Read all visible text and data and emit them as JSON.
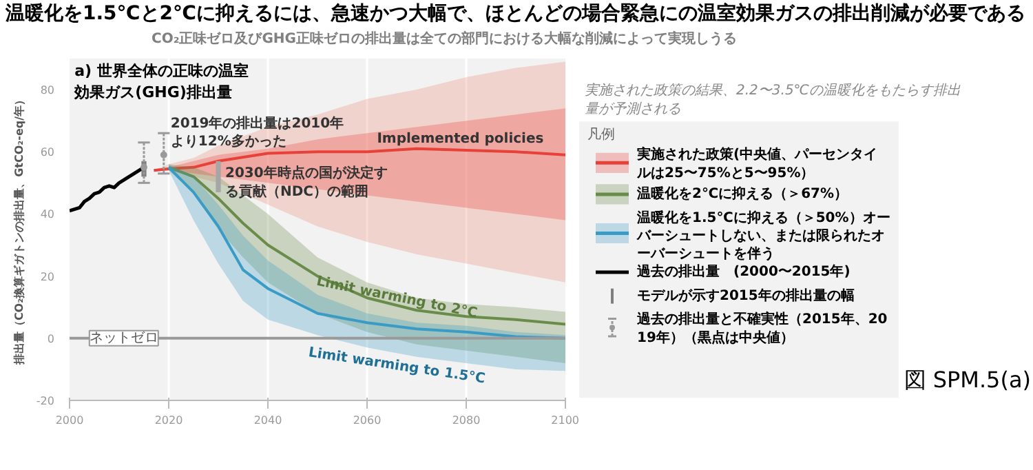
{
  "chart_data": {
    "type": "line",
    "title": "温暖化を1.5℃と2℃に抑えるには、急速かつ大幅で、ほとんどの場合緊急にの温室効果ガスの排出削減が必要である",
    "subtitle": "CO₂正味ゼロ及びGHG正味ゼロの排出量は全ての部門における大幅な削減によって実現しうる",
    "ylabel": "排出量（CO₂換算ギガトンの排出量、GtCO₂-eq/年）",
    "legend_title": "凡例",
    "xlim": [
      2000,
      2100
    ],
    "xticks": [
      2000,
      2020,
      2040,
      2060,
      2080,
      2100
    ],
    "ylim": [
      -20,
      90
    ],
    "yticks": [
      -20,
      0,
      20,
      40,
      60,
      80
    ],
    "grid": "x",
    "legend": "right",
    "ref_lines": [
      {
        "axis": "y",
        "value": 0,
        "label": "ネットゼロ",
        "color": "#9a9a9a"
      }
    ],
    "annotations": [
      "a) 世界全体の正味の温室効果ガス(GHG)排出量",
      "実施された政策の結果、2.2〜3.5℃の温暖化をもたらす排出量が予測される",
      "図 SPM.5(a)",
      "Implemented policies",
      "Limit warming to 2°C",
      "Limit warming to 1.5°C",
      {
        "text": "2019年の排出量は2010年より12%多かった",
        "x": 2019,
        "y": 66
      },
      {
        "text": "2030年時点の国が決定する貢献（NDC）の範囲",
        "x": 2030,
        "y": 50
      }
    ],
    "series": [
      {
        "color": "#f08c78",
        "x": [
          2017,
          2020,
          2025,
          2030,
          2040,
          2050,
          2060,
          2070,
          2080,
          2090,
          2100
        ],
        "values": [
          null,
          null,
          null,
          null,
          null,
          null,
          null,
          null,
          null,
          null,
          null
        ],
        "lower": [
          54,
          54,
          52,
          50,
          43,
          36,
          31,
          27,
          24,
          21,
          18
        ],
        "upper": [
          54,
          56,
          58,
          62,
          68,
          72,
          77,
          80,
          84,
          87,
          89
        ]
      },
      {
        "name": "実施された政策(中央値、パーセンタイルは25〜75%と5〜95%）",
        "color": "#e8413a",
        "x": [
          2017,
          2020,
          2025,
          2030,
          2040,
          2050,
          2060,
          2070,
          2080,
          2090,
          2100
        ],
        "values": [
          54,
          54.5,
          55,
          57,
          59.5,
          60,
          60,
          61,
          60.5,
          60,
          59
        ],
        "lower": [
          54,
          54,
          53,
          52,
          50,
          48,
          46,
          44,
          42,
          40,
          38
        ],
        "upper": [
          54,
          55,
          57,
          59,
          61,
          64,
          66,
          68,
          70,
          72,
          74
        ]
      },
      {
        "name": "温暖化を2℃に抑える（＞67%）",
        "color": "#6a8c4a",
        "x": [
          2020,
          2025,
          2030,
          2035,
          2040,
          2050,
          2060,
          2070,
          2080,
          2090,
          2100
        ],
        "values": [
          55,
          52,
          45,
          37,
          30,
          20,
          13,
          9,
          7,
          6,
          4.5
        ],
        "lower": [
          54,
          47,
          35,
          26,
          18,
          8,
          2,
          -2,
          -4,
          -6,
          -8
        ],
        "upper": [
          56,
          55,
          52,
          46,
          40,
          26,
          18,
          13,
          11,
          10,
          8.5
        ]
      },
      {
        "name": "温暖化を1.5℃に抑える（＞50%）オーバーシュートしない、または限られたオーバーシュートを伴う",
        "color": "#3a9bc4",
        "x": [
          2020,
          2025,
          2030,
          2035,
          2040,
          2050,
          2060,
          2070,
          2080,
          2090,
          2100
        ],
        "values": [
          55,
          47,
          36,
          22,
          16,
          8,
          5,
          3,
          2,
          0.5,
          0
        ],
        "lower": [
          54,
          38,
          24,
          12,
          6,
          1,
          -3,
          -6,
          -8,
          -10,
          -10.5
        ],
        "upper": [
          56,
          52,
          43,
          33,
          25,
          14,
          8,
          5,
          4,
          2,
          1
        ]
      },
      {
        "name": "過去の排出量　(2000〜2015年)",
        "color": "#000000",
        "x": [
          2000,
          2001,
          2002,
          2003,
          2004,
          2005,
          2006,
          2007,
          2008,
          2009,
          2010,
          2011,
          2012,
          2013,
          2014,
          2015
        ],
        "values": [
          41,
          41.5,
          42,
          44,
          45,
          46.5,
          47,
          48.5,
          49,
          48.5,
          50,
          51,
          52,
          53,
          54,
          55
        ]
      },
      {
        "type": "bar",
        "name": "モデルが示す2015年の排出量の幅",
        "color": "#7f7f7f",
        "x": [
          2015
        ],
        "base": [
          52
        ],
        "values": [
          5
        ]
      },
      {
        "type": "scatter",
        "name": "過去の排出量と不確実性（2015年、2019年）（黒点は中央値）",
        "color": "#9a9a9a",
        "marker": "circle",
        "x": [
          2015,
          2019
        ],
        "values": [
          55,
          59
        ],
        "errors": [
          [
            50,
            63
          ],
          [
            53,
            66
          ]
        ]
      },
      {
        "type": "bar",
        "color": "#a6a6a6",
        "x": [
          2030
        ],
        "base": [
          47
        ],
        "values": [
          10
        ]
      }
    ]
  }
}
